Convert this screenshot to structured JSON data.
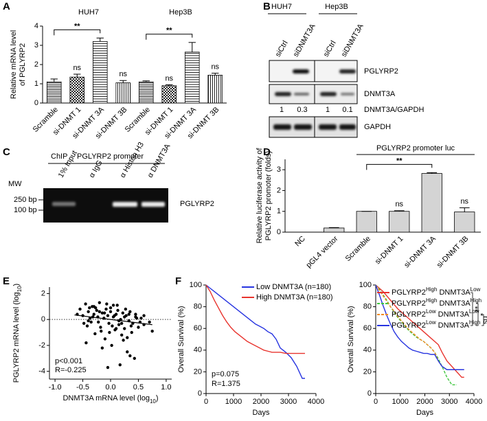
{
  "chart_data": [
    {
      "type": "bar",
      "panel": "A",
      "ylabel": [
        "Relative mRNA level",
        "of PGLYRP2"
      ],
      "ylim": [
        0,
        4
      ],
      "yticks": [
        0,
        1,
        2,
        3,
        4
      ],
      "groups": [
        {
          "name": "HUH7",
          "categories": [
            "Scramble",
            "si-DNMT 1",
            "si-DNMT 3A",
            "si-DNMT 3B"
          ],
          "values": [
            1.1,
            1.35,
            3.2,
            1.05
          ],
          "errors": [
            0.15,
            0.15,
            0.18,
            0.12
          ],
          "bar_labels": [
            null,
            "ns",
            null,
            "ns"
          ],
          "bracket": {
            "label": "**",
            "from": "Scramble",
            "to": "si-DNMT 3A"
          }
        },
        {
          "name": "Hep3B",
          "categories": [
            "Scramble",
            "si-DNMT 1",
            "si-DNMT 3A",
            "si-DNMT 3B"
          ],
          "values": [
            1.1,
            0.9,
            2.65,
            1.45
          ],
          "errors": [
            0.05,
            0.05,
            0.5,
            0.1
          ],
          "bar_labels": [
            null,
            "ns",
            null,
            "ns"
          ],
          "bracket": {
            "label": "**",
            "from": "Scramble",
            "to": "si-DNMT 3A"
          }
        }
      ]
    },
    {
      "type": "bar",
      "panel": "D",
      "ylabel": [
        "Relative luciferase activity of",
        "PGLYRP2 promoter (folds)"
      ],
      "ylim": [
        0,
        3.5
      ],
      "yticks": [
        0,
        1,
        2,
        3
      ],
      "color": "#d4d4d4",
      "groups": [
        {
          "categories": [
            "NC",
            "pGL4 vector",
            "Scramble",
            "si-DNMT 1",
            "si-DNMT 3A",
            "si-DNMT 3B"
          ],
          "values": [
            0,
            0.2,
            1,
            1,
            2.82,
            0.97
          ],
          "errors": [
            0,
            0.02,
            0,
            0.03,
            0.04,
            0.2
          ],
          "bar_labels": [
            null,
            null,
            null,
            "ns",
            null,
            "ns"
          ],
          "bracket": {
            "label": "**",
            "from": "Scramble",
            "to": "si-DNMT 3A"
          },
          "header": {
            "label": "PGLYRP2 promoter luc",
            "from": "Scramble",
            "to": "si-DNMT 3B"
          }
        }
      ]
    },
    {
      "type": "scatter",
      "panel": "E",
      "xlabel": "DNMT3A mRNA level (log10)",
      "ylabel": "PGLYRP2 mRNA level (log10)",
      "xlim": [
        -1.1,
        1.1
      ],
      "xticks": [
        {
          "value": -1,
          "label": "-1.0"
        },
        -0.5,
        {
          "value": 0,
          "label": "0.0"
        },
        0.5,
        {
          "value": 1,
          "label": "1.0"
        }
      ],
      "ylim": [
        -4.6,
        2.5
      ],
      "yticks": [
        -4,
        -2,
        0,
        2
      ],
      "hline": 0,
      "stats": [
        "p<0.001",
        "R=-0.225"
      ],
      "fit": {
        "x": [
          -0.65,
          0.75
        ],
        "y": [
          0.35,
          -0.4
        ]
      },
      "x": [
        -0.55,
        -0.5,
        -0.45,
        -0.42,
        -0.4,
        -0.38,
        -0.35,
        -0.33,
        -0.3,
        -0.28,
        -0.25,
        -0.23,
        -0.2,
        -0.18,
        -0.15,
        -0.12,
        -0.1,
        -0.08,
        -0.05,
        -0.03,
        0,
        0.02,
        0.05,
        0.08,
        0.1,
        0.12,
        0.15,
        0.18,
        0.2,
        0.22,
        0.25,
        0.28,
        0.3,
        0.33,
        0.35,
        0.38,
        0.4,
        0.45,
        0.5,
        0.55,
        0.6,
        0.7,
        0.75,
        -0.6,
        -0.48,
        -0.37,
        -0.27,
        -0.17,
        -0.07,
        0.03,
        0.13,
        0.23,
        0.33,
        0.43,
        0.53,
        -0.44,
        -0.32,
        -0.22,
        -0.11,
        -0.02,
        0.07,
        0.17,
        0.27,
        0.37,
        0.47,
        -0.3,
        -0.15,
        0,
        0.15,
        0.3,
        0.45,
        -0.2,
        0.1,
        0.25,
        -0.05,
        0.05,
        0.35,
        -0.4,
        0.2,
        0.6
      ],
      "y": [
        0.8,
        0.3,
        1.2,
        -0.5,
        0.6,
        0.9,
        -0.2,
        1.0,
        0.4,
        -1.1,
        0.7,
        0.2,
        1.3,
        -0.6,
        0.5,
        0.1,
        -1.5,
        0.8,
        0.3,
        -0.3,
        0.6,
        -2.0,
        0.2,
        -0.8,
        0.4,
        1.1,
        -0.4,
        0.0,
        -1.2,
        0.5,
        -0.7,
        0.3,
        -2.5,
        -0.1,
        0.6,
        -1.0,
        -0.3,
        0.2,
        -0.6,
        0.1,
        -0.4,
        -0.2,
        -0.9,
        0.4,
        -0.3,
        0.1,
        0.9,
        -0.9,
        1.2,
        -0.5,
        0.7,
        -1.6,
        0.4,
        -3.0,
        -0.2,
        -1.8,
        0.2,
        -0.2,
        0.5,
        -1.0,
        0.3,
        -3.5,
        0.8,
        -0.5,
        0.1,
        1.0,
        -2.2,
        0.9,
        -0.1,
        -1.4,
        0.4,
        0.6,
        -0.7,
        0.2,
        -3.7,
        1.1,
        -2.8,
        -0.1,
        -0.3,
        0.3
      ]
    },
    {
      "type": "km",
      "panel": "F",
      "xlabel": "Days",
      "ylabel": "Overall Survival (%)",
      "legend": "upper right",
      "xlim": [
        0,
        4000
      ],
      "xticks": [
        0,
        1000,
        2000,
        3000,
        4000
      ],
      "ylim": [
        0,
        100
      ],
      "yticks": [
        0,
        20,
        40,
        60,
        80,
        100
      ],
      "stats": [
        "p=0.075",
        "R=1.375"
      ],
      "x": [
        0,
        150,
        300,
        450,
        600,
        750,
        900,
        1050,
        1200,
        1350,
        1500,
        1650,
        1800,
        1950,
        2100,
        2250,
        2400,
        2550,
        2700,
        2900,
        3100,
        3300,
        3500,
        3600
      ],
      "series": [
        {
          "name": "Low DNMT3A (n=180)",
          "color": "#2633e0",
          "values": [
            100,
            97,
            94,
            91,
            88,
            85,
            82,
            79,
            76,
            73,
            70,
            67,
            64,
            62,
            60,
            57,
            55,
            50,
            42,
            38,
            33,
            25,
            14,
            14
          ]
        },
        {
          "name": "High DNMT3A (n=180)",
          "color": "#e8332d",
          "values": [
            100,
            94,
            86,
            79,
            72,
            66,
            61,
            57,
            54,
            51,
            48,
            46,
            44,
            42,
            40,
            39,
            38,
            38,
            38,
            37,
            37,
            37,
            37,
            37
          ]
        }
      ]
    },
    {
      "type": "km",
      "xlabel": "Days",
      "ylabel": "Overall Survival (%)",
      "legend": "upper right",
      "xlim": [
        0,
        4000
      ],
      "xticks": [
        0,
        1000,
        2000,
        3000,
        4000
      ],
      "ylim": [
        0,
        100
      ],
      "yticks": [
        0,
        20,
        40,
        60,
        80,
        100
      ],
      "annotations": [
        "**",
        "*",
        "ns"
      ],
      "x": [
        0,
        150,
        300,
        450,
        600,
        750,
        900,
        1050,
        1200,
        1350,
        1500,
        1650,
        1800,
        1950,
        2100,
        2250,
        2400,
        2550,
        2700,
        2900,
        3100,
        3300,
        3500,
        3600
      ],
      "series": [
        {
          "name": "PGLYRP2High DNMT3ALow",
          "color": "#e8332d",
          "dash": false,
          "values": [
            100,
            97,
            94,
            90,
            86,
            82,
            78,
            75,
            72,
            69,
            66,
            63,
            60,
            57,
            54,
            51,
            48,
            45,
            38,
            30,
            25,
            20,
            15,
            15
          ]
        },
        {
          "name": "PGLYRP2High DNMT3AHigh",
          "color": "#3fc63f",
          "dash": true,
          "values": [
            100,
            96,
            91,
            86,
            80,
            75,
            70,
            66,
            62,
            58,
            55,
            52,
            50,
            48,
            45,
            42,
            38,
            32,
            25,
            15,
            8,
            8,
            null,
            null
          ]
        },
        {
          "name": "PGLYRP2Low DNMT3ALow",
          "color": "#f28a22",
          "dash": true,
          "values": [
            100,
            95,
            90,
            85,
            80,
            76,
            71,
            67,
            63,
            59,
            56,
            53,
            50,
            48,
            45,
            42,
            38,
            30,
            25,
            22,
            22,
            22,
            22,
            22
          ]
        },
        {
          "name": "PGLYRP2Low DNMT3AHigh",
          "color": "#2633e0",
          "dash": false,
          "values": [
            100,
            91,
            81,
            72,
            64,
            57,
            52,
            48,
            45,
            42,
            40,
            39,
            38,
            37,
            37,
            36,
            36,
            30,
            25,
            22,
            22,
            22,
            22,
            22
          ]
        }
      ]
    }
  ],
  "blot": {
    "panel": "B",
    "groups": [
      "HUH7",
      "Hep3B"
    ],
    "lanes": [
      "siCtrl",
      "siDNMT3A",
      "siCtrl",
      "siDNMT3A"
    ],
    "rows": [
      "PGLYRP2",
      "DNMT3A",
      "GAPDH"
    ],
    "ratio_label": "DNMT3A/GAPDH",
    "ratios": [
      1,
      0.3,
      1,
      0.1
    ]
  },
  "gel": {
    "panel": "C",
    "title": [
      "ChIP",
      "PGLYRP2 promoter"
    ],
    "mw_label": "MW",
    "markers": [
      "250 bp",
      "100 bp"
    ],
    "lanes": [
      "1% Input",
      "α IgG",
      "α Histon H3",
      "α DNMT3A"
    ],
    "band_label": "PGLYRP2"
  }
}
